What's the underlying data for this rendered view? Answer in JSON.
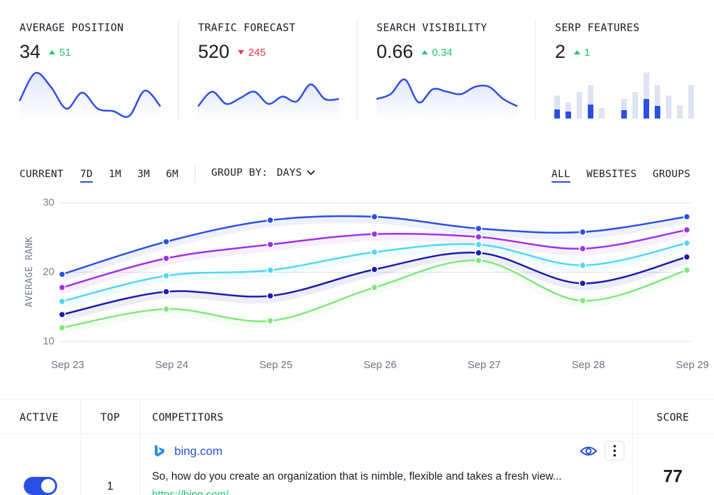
{
  "kpis": [
    {
      "title": "AVERAGE POSITION",
      "value": 34,
      "change": 51,
      "trend": "up",
      "spark": {
        "values": [
          3.6,
          9.3,
          6.5,
          2.0,
          5.3,
          2.0,
          1.5,
          0.5,
          5.7,
          2.5
        ],
        "ylim": [
          0,
          10
        ]
      }
    },
    {
      "title": "TRAFIC FORECAST",
      "value": 520,
      "change": 245,
      "trend": "down",
      "spark": {
        "values": [
          2.5,
          5.5,
          3.0,
          4.2,
          5.5,
          3.0,
          4.5,
          3.5,
          7.0,
          4.0,
          4.0
        ],
        "ylim": [
          0,
          10
        ]
      }
    },
    {
      "title": "SEARCH VISIBILITY",
      "value": 0.66,
      "change": 0.34,
      "trend": "up",
      "spark": {
        "values": [
          4.0,
          5.0,
          8.0,
          3.3,
          6.0,
          5.5,
          5.0,
          6.5,
          6.5,
          4.0,
          2.5
        ],
        "ylim": [
          0,
          10
        ]
      }
    },
    {
      "title": "SERP FEATURES",
      "value": 2,
      "change": 1,
      "trend": "up",
      "bars": {
        "total": [
          3.3,
          2.3,
          3.8,
          4.8,
          1.5,
          null,
          2.8,
          3.8,
          6.6,
          4.8,
          3.3,
          1.9,
          4.8
        ],
        "active": [
          1.3,
          1.0,
          0,
          2.0,
          0,
          null,
          1.2,
          0,
          2.8,
          1.8,
          0,
          0,
          0
        ],
        "ylim": [
          0,
          7
        ]
      }
    }
  ],
  "toolbar": {
    "ranges": [
      "CURRENT",
      "7D",
      "1M",
      "3M",
      "6M"
    ],
    "active_range": 1,
    "group_label": "GROUP BY:",
    "group_value": "DAYS",
    "tabs": [
      "ALL",
      "WEBSITES",
      "GROUPS"
    ],
    "active_tab": 0
  },
  "chart_data": {
    "type": "line",
    "y_label": "AVERAGE RANK",
    "categories": [
      "Sep 23",
      "Sep 24",
      "Sep 25",
      "Sep 26",
      "Sep 27",
      "Sep 28",
      "Sep 29"
    ],
    "ylim": [
      10,
      30
    ],
    "yticks": [
      10,
      20,
      30
    ],
    "grid": true,
    "series": [
      {
        "color": "#2a4fe3",
        "values": [
          19.7,
          24.4,
          27.5,
          28.0,
          26.3,
          25.8,
          28.0
        ]
      },
      {
        "color": "#a22fe8",
        "values": [
          17.8,
          22.0,
          24.0,
          25.5,
          25.1,
          23.4,
          26.1
        ]
      },
      {
        "color": "#4fd8f2",
        "values": [
          15.8,
          19.5,
          20.3,
          22.9,
          24.0,
          21.0,
          24.2
        ]
      },
      {
        "color": "#1a1cae",
        "values": [
          13.9,
          17.2,
          16.6,
          20.4,
          22.8,
          18.4,
          22.2
        ]
      },
      {
        "color": "#7fe87c",
        "values": [
          12.0,
          14.7,
          13.0,
          17.8,
          21.7,
          15.9,
          20.3
        ]
      }
    ]
  },
  "table": {
    "columns": [
      "ACTIVE",
      "TOP",
      "COMPETITORS",
      "SCORE"
    ],
    "rows": [
      {
        "active": true,
        "top": 1,
        "name": "bing.com",
        "description": "So, how do you create an organization that is nimble, flexible and takes a fresh view...",
        "url": "https://bing.com/",
        "score": 77
      }
    ]
  }
}
